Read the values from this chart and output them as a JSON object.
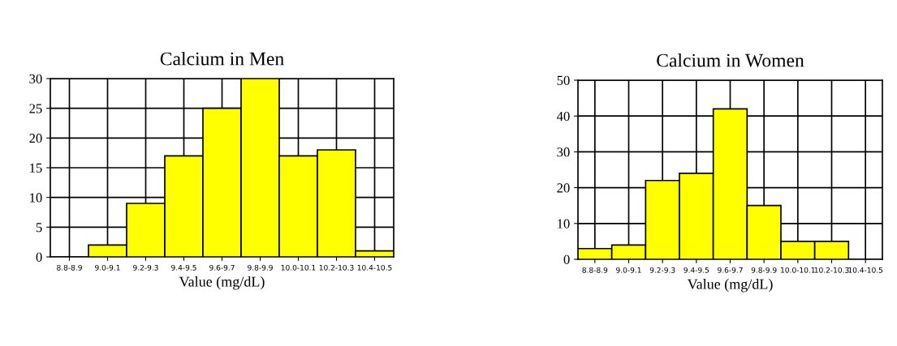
{
  "chart_data": [
    {
      "type": "bar",
      "title": "Calcium in Men",
      "xlabel": "Value (mg/dL)",
      "categories": [
        "8.8-8.9",
        "9.0-9.1",
        "9.2-9.3",
        "9.4-9.5",
        "9.6-9.7",
        "9.8-9.9",
        "10.0-10.1",
        "10.2-10.3",
        "10.4-10.5"
      ],
      "values": [
        0,
        2,
        9,
        17,
        25,
        30,
        17,
        18,
        1
      ],
      "color": "#ffff00",
      "ylim": [
        0,
        30
      ],
      "yticks": [
        0,
        5,
        10,
        15,
        20,
        25,
        30
      ],
      "grid": true
    },
    {
      "type": "bar",
      "title": "Calcium in Women",
      "xlabel": "Value (mg/dL)",
      "categories": [
        "8.8-8.9",
        "9.0-9.1",
        "9.2-9.3",
        "9.4-9.5",
        "9.6-9.7",
        "9.8-9.9",
        "10.0-10.1",
        "10.2-10.3",
        "10.4-10.5"
      ],
      "values": [
        3,
        4,
        22,
        24,
        42,
        15,
        5,
        5,
        0
      ],
      "color": "#ffff00",
      "ylim": [
        0,
        50
      ],
      "yticks": [
        0,
        10,
        20,
        30,
        40,
        50
      ],
      "grid": true
    }
  ]
}
